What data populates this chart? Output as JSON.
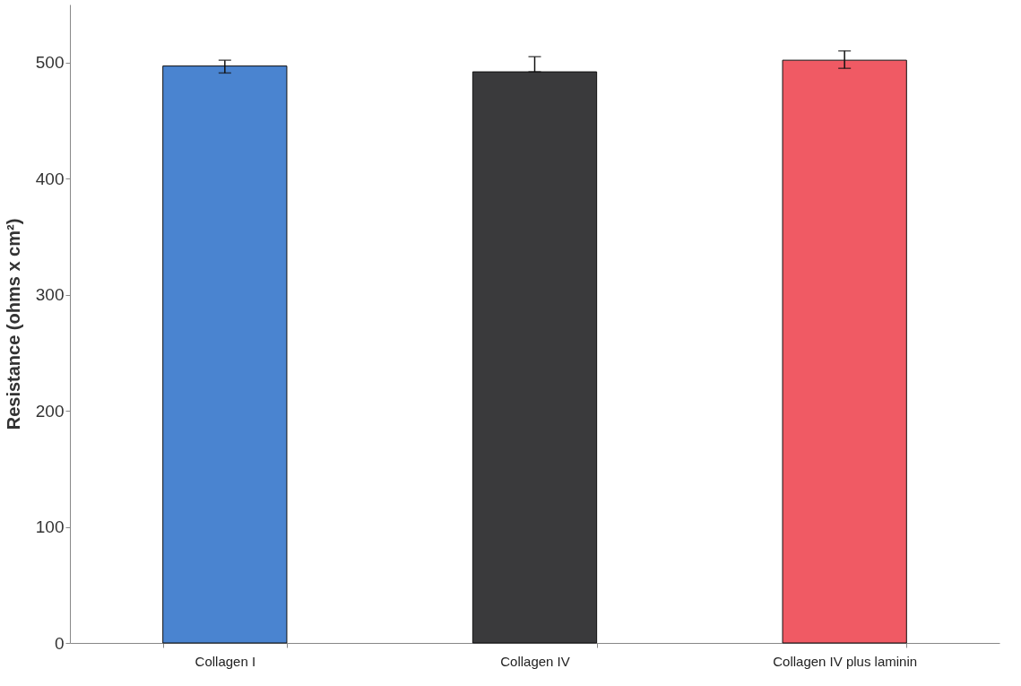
{
  "chart_data": {
    "type": "bar",
    "ylabel": "Resistance (ohms x cm²)",
    "categories": [
      "Collagen I",
      "Collagen IV",
      "Collagen IV plus laminin"
    ],
    "values": [
      497,
      492,
      502
    ],
    "colors": [
      "#4a84d0",
      "#3a3a3c",
      "#f05a64"
    ],
    "errors": [
      [
        491,
        502
      ],
      [
        492,
        505
      ],
      [
        495,
        510
      ]
    ],
    "ylim": [
      0,
      550
    ],
    "yticks": [
      0,
      100,
      200,
      300,
      400,
      500
    ],
    "grid": false
  }
}
